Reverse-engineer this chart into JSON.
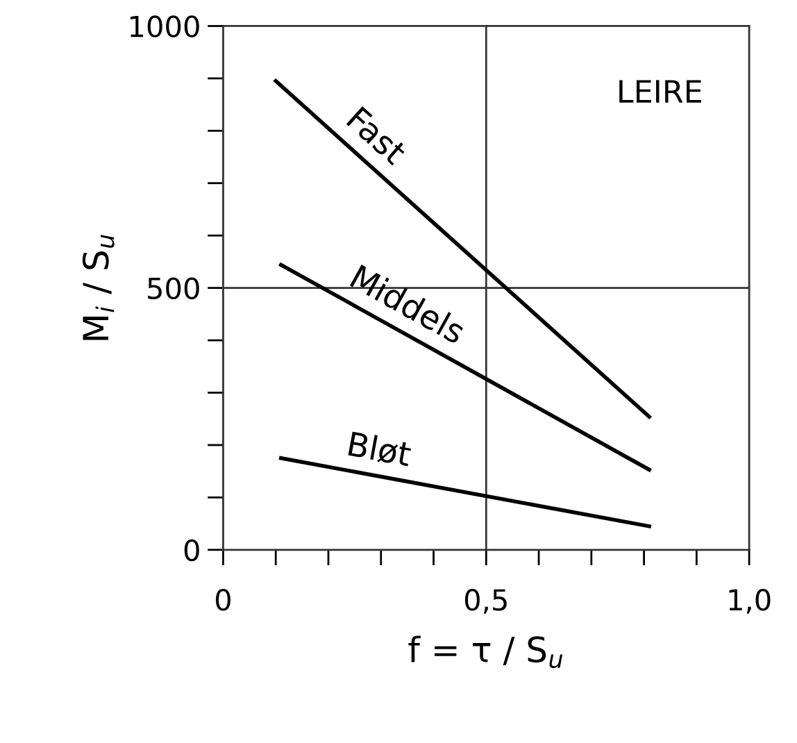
{
  "chart_data": {
    "type": "line",
    "xlabel": "f = τ / S$_{u}$",
    "ylabel": "M$_{i}$ / S$_{u}$",
    "annotations": [
      "LEIRE"
    ],
    "xlim": [
      0,
      1.0
    ],
    "ylim": [
      0,
      1000
    ],
    "xticks": [
      0,
      {
        "value": 0.1,
        "label": null
      },
      {
        "value": 0.2,
        "label": null
      },
      {
        "value": 0.3,
        "label": null
      },
      {
        "value": 0.4,
        "label": null
      },
      {
        "value": 0.5,
        "label": "0,5"
      },
      {
        "value": 0.6,
        "label": null
      },
      {
        "value": 0.7,
        "label": null
      },
      {
        "value": 0.8,
        "label": null
      },
      {
        "value": 0.9,
        "label": null
      },
      {
        "value": 1.0,
        "label": "1,0"
      }
    ],
    "yticks": [
      0,
      {
        "value": 100,
        "label": null
      },
      {
        "value": 200,
        "label": null
      },
      {
        "value": 300,
        "label": null
      },
      {
        "value": 400,
        "label": null
      },
      500,
      {
        "value": 600,
        "label": null
      },
      {
        "value": 700,
        "label": null
      },
      {
        "value": 800,
        "label": null
      },
      {
        "value": 900,
        "label": null
      },
      1000
    ],
    "ref_lines": [
      {
        "axis": "x",
        "value": 0.5,
        "color": "#333333"
      },
      {
        "axis": "y",
        "value": 500,
        "color": "#333333"
      }
    ],
    "legend": false,
    "grid": false,
    "marker": "none",
    "line_style": "solid",
    "series": [
      {
        "name": "Fast",
        "color": "#000000",
        "x": [
          0.1,
          0.81
        ],
        "values": [
          895,
          254
        ]
      },
      {
        "name": "Middels",
        "color": "#000000",
        "x": [
          0.11,
          0.81
        ],
        "values": [
          544,
          153
        ]
      },
      {
        "name": "Bløt",
        "color": "#000000",
        "x": [
          0.11,
          0.81
        ],
        "values": [
          175,
          45
        ]
      }
    ]
  }
}
